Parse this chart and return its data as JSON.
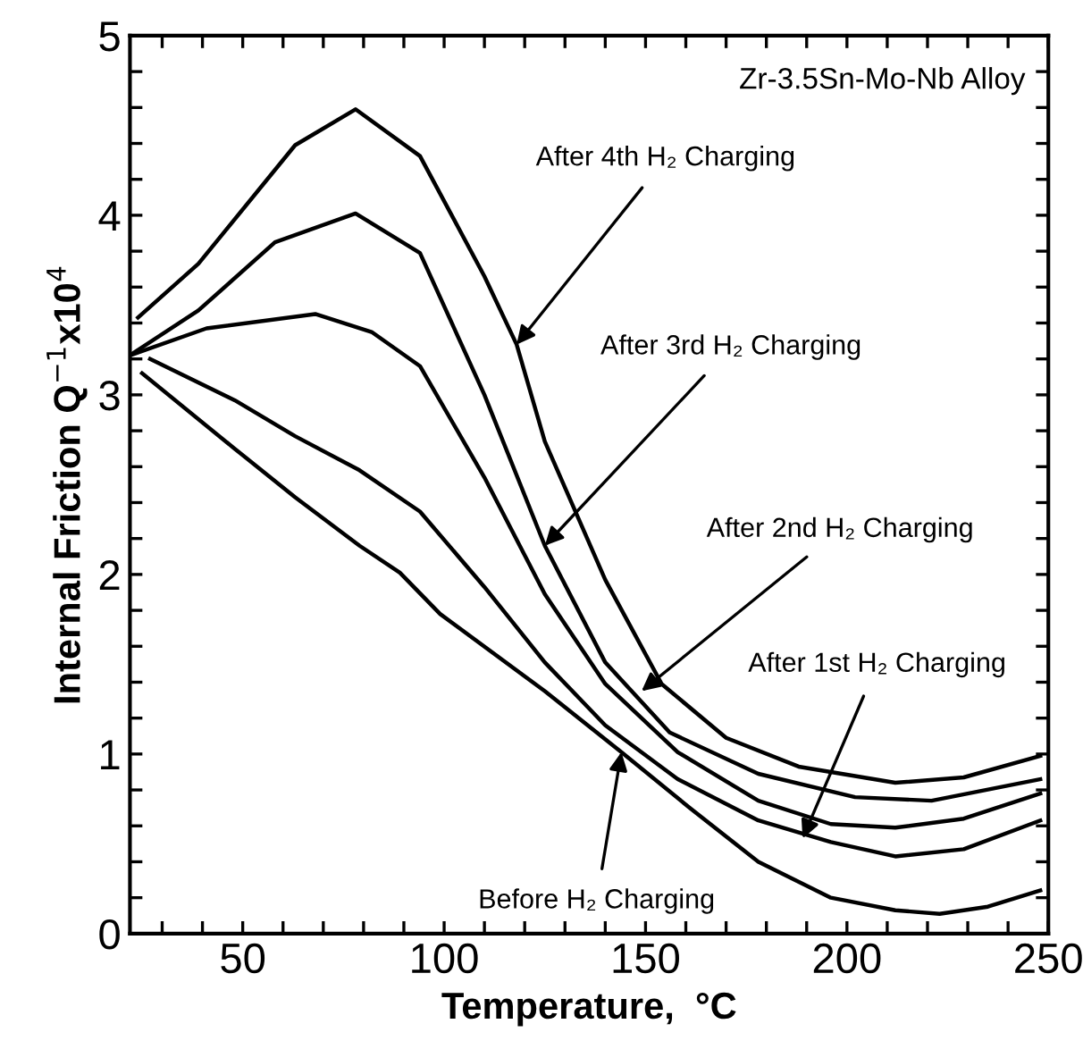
{
  "chart_data": {
    "type": "line",
    "title": "Zr-3.5Sn-Mo-Nb Alloy",
    "xlabel": "Temperature,  °C",
    "ylabel": "Internal Friction Q$^{−1}$x10$^{4}$",
    "xlim": [
      22,
      250
    ],
    "ylim": [
      0,
      5
    ],
    "xticks": [
      {
        "value": 30,
        "label": null
      },
      {
        "value": 40,
        "label": null
      },
      50,
      {
        "value": 60,
        "label": null
      },
      {
        "value": 70,
        "label": null
      },
      {
        "value": 80,
        "label": null
      },
      {
        "value": 90,
        "label": null
      },
      100,
      {
        "value": 110,
        "label": null
      },
      {
        "value": 120,
        "label": null
      },
      {
        "value": 130,
        "label": null
      },
      {
        "value": 140,
        "label": null
      },
      150,
      {
        "value": 160,
        "label": null
      },
      {
        "value": 170,
        "label": null
      },
      {
        "value": 180,
        "label": null
      },
      {
        "value": 190,
        "label": null
      },
      200,
      {
        "value": 210,
        "label": null
      },
      {
        "value": 220,
        "label": null
      },
      {
        "value": 230,
        "label": null
      },
      {
        "value": 240,
        "label": null
      },
      250
    ],
    "yticks": [
      0,
      {
        "value": 0.2,
        "label": null
      },
      {
        "value": 0.4,
        "label": null
      },
      {
        "value": 0.6,
        "label": null
      },
      {
        "value": 0.8,
        "label": null
      },
      1,
      {
        "value": 1.2,
        "label": null
      },
      {
        "value": 1.4,
        "label": null
      },
      {
        "value": 1.6,
        "label": null
      },
      {
        "value": 1.8,
        "label": null
      },
      2,
      {
        "value": 2.2,
        "label": null
      },
      {
        "value": 2.4,
        "label": null
      },
      {
        "value": 2.6,
        "label": null
      },
      {
        "value": 2.8,
        "label": null
      },
      3,
      {
        "value": 3.2,
        "label": null
      },
      {
        "value": 3.4,
        "label": null
      },
      {
        "value": 3.6,
        "label": null
      },
      {
        "value": 3.8,
        "label": null
      },
      4,
      {
        "value": 4.2,
        "label": null
      },
      {
        "value": 4.4,
        "label": null
      },
      {
        "value": 4.6,
        "label": null
      },
      {
        "value": 4.8,
        "label": null
      },
      5
    ],
    "grid": false,
    "marker": "none",
    "line_style": "solid",
    "series": [
      {
        "color": "#000000",
        "x": [
          24,
          39,
          63,
          78,
          94,
          110,
          118,
          125,
          140,
          154,
          170,
          188,
          212,
          229,
          248
        ],
        "values": [
          3.43,
          3.73,
          4.39,
          4.59,
          4.33,
          3.66,
          3.28,
          2.74,
          1.97,
          1.39,
          1.09,
          0.93,
          0.84,
          0.87,
          0.99
        ]
      },
      {
        "color": "#000000",
        "x": [
          22,
          39,
          58,
          78,
          94,
          110,
          125,
          140,
          156,
          178,
          202,
          221,
          248
        ],
        "values": [
          3.22,
          3.47,
          3.85,
          4.01,
          3.79,
          3.0,
          2.16,
          1.51,
          1.12,
          0.89,
          0.76,
          0.74,
          0.86
        ]
      },
      {
        "color": "#000000",
        "x": [
          22,
          41,
          68,
          82,
          94,
          110,
          125,
          140,
          158,
          178,
          196,
          212,
          229,
          248
        ],
        "values": [
          3.22,
          3.37,
          3.45,
          3.35,
          3.16,
          2.54,
          1.89,
          1.39,
          1.01,
          0.74,
          0.61,
          0.59,
          0.64,
          0.78
        ]
      },
      {
        "color": "#000000",
        "x": [
          27,
          48,
          63,
          79,
          94,
          110,
          125,
          140,
          158,
          178,
          196,
          212,
          229,
          248
        ],
        "values": [
          3.2,
          2.97,
          2.77,
          2.58,
          2.35,
          1.93,
          1.51,
          1.16,
          0.86,
          0.63,
          0.51,
          0.43,
          0.47,
          0.63
        ]
      },
      {
        "color": "#000000",
        "x": [
          25,
          48,
          63,
          79,
          89,
          99,
          125,
          144,
          161,
          178,
          196,
          212,
          223,
          235,
          248
        ],
        "values": [
          3.12,
          2.7,
          2.43,
          2.16,
          2.01,
          1.78,
          1.35,
          1.01,
          0.7,
          0.4,
          0.2,
          0.13,
          0.11,
          0.15,
          0.24
        ]
      }
    ],
    "annotations": [
      {
        "text": "After 4th H₂ Charging",
        "x": 118,
        "y": 3.28
      },
      {
        "text": "After 3rd H₂ Charging",
        "x": 125,
        "y": 2.16
      },
      {
        "text": "After 2nd H₂ Charging",
        "x": 149,
        "y": 1.35
      },
      {
        "text": "After 1st H₂ Charging",
        "x": 189,
        "y": 0.53
      },
      {
        "text": "Before H₂ Charging",
        "x": 144,
        "y": 1.01
      }
    ]
  }
}
